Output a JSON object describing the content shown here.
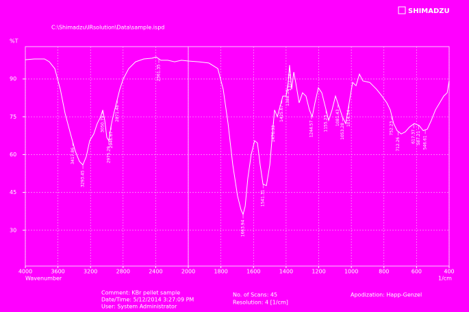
{
  "header": {
    "file": "C:\\Shimadzu\\IRsolution\\Data\\sample.ispd",
    "logo": "SHIMADZU"
  },
  "chart_data": {
    "type": "line",
    "xlabel": "Wavenumber",
    "xunit": "1/cm",
    "ylabel": "%T",
    "xlim": [
      4000,
      400
    ],
    "x_scale_break": 2000,
    "ylim": [
      15.8,
      102.8
    ],
    "xticks": [
      4000,
      3600,
      3200,
      2800,
      2400,
      2000,
      1800,
      1600,
      1400,
      1200,
      1000,
      800,
      600,
      400
    ],
    "yticks": [
      30,
      45,
      60,
      75,
      90
    ],
    "grid": true,
    "color": "#ffffff",
    "x": [
      4000,
      3891,
      3765,
      3706,
      3639,
      3571,
      3513,
      3445,
      3387,
      3336,
      3294,
      3252,
      3210,
      3160,
      3118,
      3076,
      3050,
      3025,
      3000,
      2975,
      2950,
      2924,
      2882,
      2840,
      2798,
      2731,
      2647,
      2546,
      2445,
      2395,
      2336,
      2252,
      2168,
      2084,
      2000,
      1937,
      1874,
      1819,
      1786,
      1756,
      1727,
      1698,
      1677,
      1664,
      1651,
      1635,
      1614,
      1593,
      1576,
      1559,
      1542,
      1521,
      1500,
      1484,
      1471,
      1454,
      1437,
      1420,
      1400,
      1387,
      1379,
      1366,
      1353,
      1341,
      1320,
      1299,
      1278,
      1257,
      1240,
      1223,
      1202,
      1181,
      1160,
      1139,
      1118,
      1097,
      1076,
      1055,
      1034,
      1013,
      992,
      971,
      950,
      929,
      887,
      845,
      812,
      782,
      761,
      740,
      719,
      694,
      669,
      643,
      614,
      584,
      559,
      534,
      509,
      484,
      458,
      433,
      412,
      400
    ],
    "y": [
      97.6,
      97.9,
      97.9,
      96.8,
      94.1,
      85.9,
      76.4,
      68.2,
      61.4,
      57.3,
      55.9,
      59.2,
      65.5,
      68.2,
      72.3,
      75.0,
      77.7,
      73.6,
      66.8,
      65.5,
      70.9,
      75.0,
      80.5,
      85.9,
      90.0,
      94.1,
      96.8,
      97.9,
      98.2,
      98.7,
      97.4,
      97.4,
      96.8,
      97.4,
      97.1,
      96.8,
      96.3,
      94.1,
      85.9,
      72.3,
      55.9,
      43.6,
      38.2,
      36.3,
      39.5,
      50.5,
      60.0,
      65.5,
      64.6,
      55.9,
      48.3,
      47.7,
      55.9,
      68.2,
      77.7,
      75.0,
      79.1,
      83.2,
      83.2,
      88.6,
      95.5,
      85.9,
      92.7,
      88.6,
      80.5,
      84.5,
      83.2,
      77.7,
      75.0,
      80.5,
      86.5,
      84.5,
      79.1,
      73.6,
      77.7,
      83.2,
      79.1,
      75.0,
      72.3,
      80.5,
      88.6,
      87.3,
      91.9,
      89.2,
      88.6,
      85.9,
      83.2,
      80.5,
      77.7,
      72.3,
      69.5,
      68.2,
      69.0,
      70.9,
      72.3,
      71.5,
      69.5,
      70.1,
      73.6,
      77.7,
      80.5,
      83.2,
      84.5,
      89.2
    ],
    "peaks": [
      3417.86,
      3293.45,
      3050.79,
      2975.29,
      2946.67,
      2871.48,
      2361.35,
      1663.94,
      1541.31,
      1476.33,
      1425.67,
      1388.16,
      1377.24,
      1244.57,
      1155.23,
      1081.43,
      1053.28,
      1014.54,
      752.23,
      712.26,
      617.37,
      587.21,
      546.61
    ]
  },
  "footer": {
    "comment": "Comment: KBr pellet sample",
    "date": "Date/Time: 5/12/2014 3:27:09 PM",
    "user": "User: System Administrator",
    "scans": "No. of Scans: 45",
    "resolution": "Resolution: 4 [1/cm]",
    "apod": "Apodization: Happ-Genzel"
  }
}
